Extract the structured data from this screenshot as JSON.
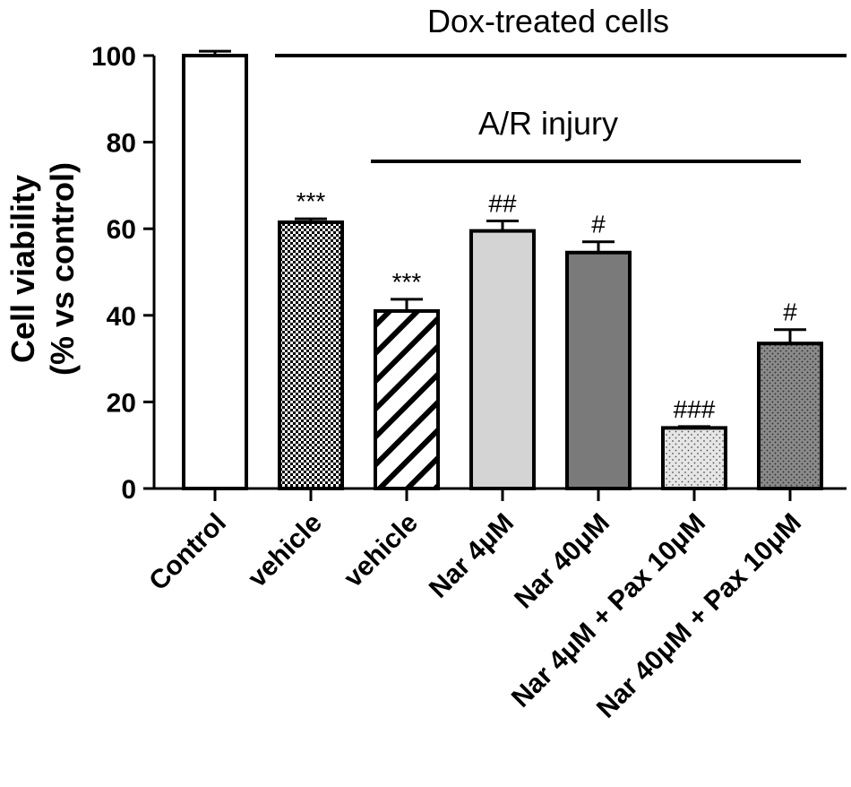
{
  "chart_data": {
    "type": "bar",
    "ylabel_line1": "Cell viability",
    "ylabel_line2": "(% vs control)",
    "ylim": [
      0,
      100
    ],
    "yticks": [
      0,
      20,
      40,
      60,
      80,
      100
    ],
    "categories": [
      "Control",
      "vehicle",
      "vehicle",
      "Nar 4μM",
      "Nar 40μM",
      "Nar 4μM + Pax 10μM",
      "Nar 40μM + Pax 10μM"
    ],
    "values": [
      100,
      61.5,
      41,
      59.5,
      54.5,
      14,
      33.5
    ],
    "errors": [
      1,
      0.8,
      2.7,
      2.3,
      2.5,
      0.3,
      3.2
    ],
    "significance": [
      "",
      "***",
      "***",
      "##",
      "#",
      "###",
      "#"
    ],
    "fills": [
      "solid-white",
      "checker",
      "diagonal-stripes",
      "solid-light-gray",
      "solid-dark-gray",
      "light-dots",
      "dark-dots"
    ],
    "group_labels": [
      {
        "text": "Dox-treated cells",
        "from_bar": 1,
        "to_bar": 6
      },
      {
        "text": "A/R injury",
        "from_bar": 2,
        "to_bar": 6
      }
    ],
    "colors": {
      "light_gray": "#d4d4d4",
      "dark_gray": "#7a7a7a",
      "light_dots_bg": "#e6e6e6",
      "dark_dots_bg": "#8a8a8a"
    },
    "grid": false,
    "legend": "none"
  }
}
